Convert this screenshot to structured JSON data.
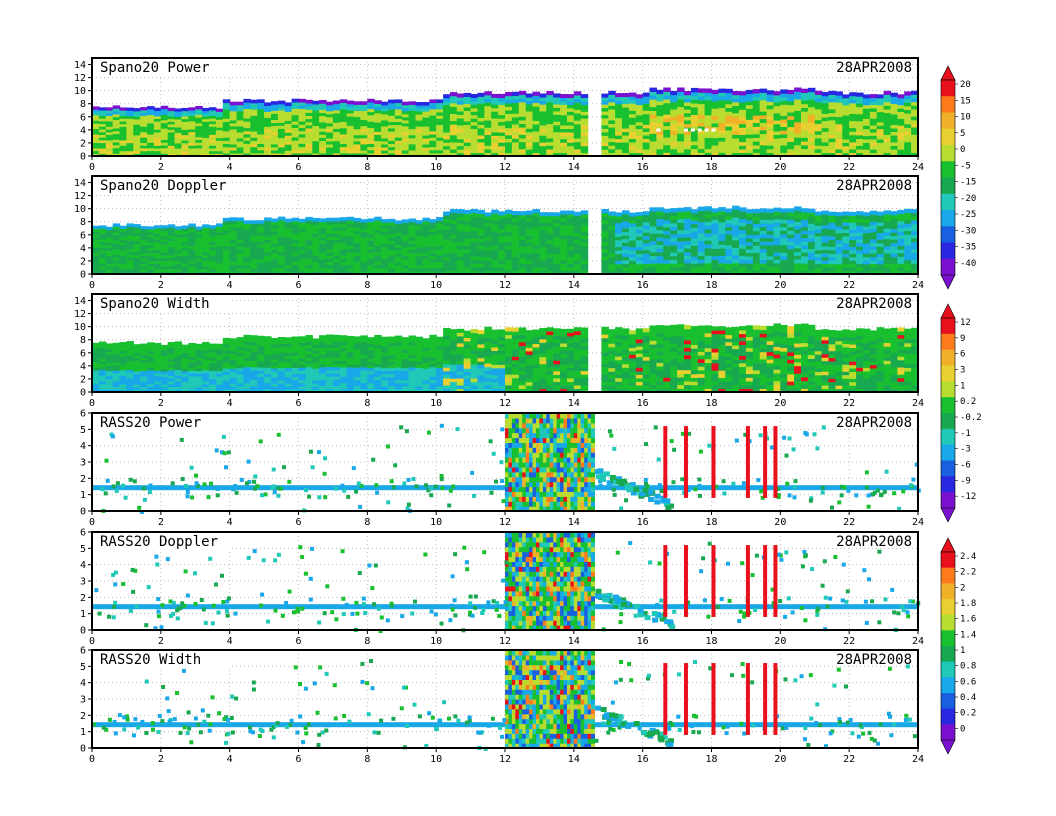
{
  "chart_data": [
    {
      "type": "heatmap",
      "title": "Spano20  Power",
      "date": "28APR2008",
      "x_ticks": [
        "0",
        "2",
        "4",
        "6",
        "8",
        "10",
        "12",
        "14",
        "16",
        "18",
        "20",
        "22",
        "24"
      ],
      "y_ticks": [
        "0",
        "2",
        "4",
        "6",
        "8",
        "10",
        "12",
        "14"
      ],
      "xlim": [
        0,
        24
      ],
      "ylim": [
        0,
        15
      ],
      "instrument": "spano",
      "colorbar": "A",
      "data_summary": {
        "echo_top_start": 7.5,
        "echo_top_end": 9.5,
        "data_gap_hour": 14.5
      }
    },
    {
      "type": "heatmap",
      "title": "Spano20  Doppler",
      "date": "28APR2008",
      "x_ticks": [
        "0",
        "2",
        "4",
        "6",
        "8",
        "10",
        "12",
        "14",
        "16",
        "18",
        "20",
        "22",
        "24"
      ],
      "y_ticks": [
        "0",
        "2",
        "4",
        "6",
        "8",
        "10",
        "12",
        "14"
      ],
      "xlim": [
        0,
        24
      ],
      "ylim": [
        0,
        15
      ],
      "instrument": "spano",
      "colorbar": "A",
      "data_summary": {
        "echo_top_start": 7.5,
        "echo_top_end": 9.5,
        "data_gap_hour": 14.5
      }
    },
    {
      "type": "heatmap",
      "title": "Spano20  Width",
      "date": "28APR2008",
      "x_ticks": [
        "0",
        "2",
        "4",
        "6",
        "8",
        "10",
        "12",
        "14",
        "16",
        "18",
        "20",
        "22",
        "24"
      ],
      "y_ticks": [
        "0",
        "2",
        "4",
        "6",
        "8",
        "10",
        "12",
        "14"
      ],
      "xlim": [
        0,
        24
      ],
      "ylim": [
        0,
        15
      ],
      "instrument": "spano",
      "colorbar": "B",
      "data_summary": {
        "echo_top_start": 7.5,
        "echo_top_end": 9.5,
        "data_gap_hour": 14.5
      }
    },
    {
      "type": "heatmap",
      "title": "RASS20  Power",
      "date": "28APR2008",
      "x_ticks": [
        "0",
        "2",
        "4",
        "6",
        "8",
        "10",
        "12",
        "14",
        "16",
        "18",
        "20",
        "22",
        "24"
      ],
      "y_ticks": [
        "0",
        "1",
        "2",
        "3",
        "4",
        "5",
        "6"
      ],
      "xlim": [
        0,
        24
      ],
      "ylim": [
        0,
        6
      ],
      "instrument": "rass",
      "colorbar": "B",
      "data_summary": {
        "dense_block_hours": [
          12,
          14.6
        ],
        "band_height": 1.5
      }
    },
    {
      "type": "heatmap",
      "title": "RASS20  Doppler",
      "date": "28APR2008",
      "x_ticks": [
        "0",
        "2",
        "4",
        "6",
        "8",
        "10",
        "12",
        "14",
        "16",
        "18",
        "20",
        "22",
        "24"
      ],
      "y_ticks": [
        "0",
        "1",
        "2",
        "3",
        "4",
        "5",
        "6"
      ],
      "xlim": [
        0,
        24
      ],
      "ylim": [
        0,
        6
      ],
      "instrument": "rass",
      "colorbar": "C",
      "data_summary": {
        "dense_block_hours": [
          12,
          14.6
        ],
        "band_height": 1.5
      }
    },
    {
      "type": "heatmap",
      "title": "RASS20  Width",
      "date": "28APR2008",
      "x_ticks": [
        "0",
        "2",
        "4",
        "6",
        "8",
        "10",
        "12",
        "14",
        "16",
        "18",
        "20",
        "22",
        "24"
      ],
      "y_ticks": [
        "0",
        "1",
        "2",
        "3",
        "4",
        "5",
        "6"
      ],
      "xlim": [
        0,
        24
      ],
      "ylim": [
        0,
        6
      ],
      "instrument": "rass",
      "colorbar": "C",
      "data_summary": {
        "dense_block_hours": [
          12,
          14.6
        ],
        "band_height": 1.5
      }
    }
  ],
  "colorbars": {
    "A": {
      "labels": [
        "20",
        "15",
        "10",
        "5",
        "0",
        "-5",
        "-15",
        "-20",
        "-25",
        "-30",
        "-35",
        "-40"
      ],
      "colors": [
        "#e8101c",
        "#ff7a1c",
        "#f0b028",
        "#e8d030",
        "#b8dc30",
        "#18c030",
        "#18a850",
        "#20c8b8",
        "#18a8e8",
        "#1860e0",
        "#2828e0",
        "#7a10d0"
      ]
    },
    "B": {
      "labels": [
        "12",
        "9",
        "6",
        "3",
        "1",
        "0.2",
        "-0.2",
        "-1",
        "-3",
        "-6",
        "-9",
        "-12"
      ],
      "colors": [
        "#e8101c",
        "#ff7a1c",
        "#f0b028",
        "#e8d030",
        "#b8dc30",
        "#18c030",
        "#18a850",
        "#20c8b8",
        "#18a8e8",
        "#1860e0",
        "#2828e0",
        "#7a10d0"
      ]
    },
    "C": {
      "labels": [
        "2.4",
        "2.2",
        "2",
        "1.8",
        "1.6",
        "1.4",
        "1",
        "0.8",
        "0.6",
        "0.4",
        "0.2",
        "0"
      ],
      "colors": [
        "#e8101c",
        "#ff7a1c",
        "#f0b028",
        "#e8d030",
        "#b8dc30",
        "#18c030",
        "#18a850",
        "#20c8b8",
        "#18a8e8",
        "#1860e0",
        "#2828e0",
        "#7a10d0"
      ]
    }
  }
}
